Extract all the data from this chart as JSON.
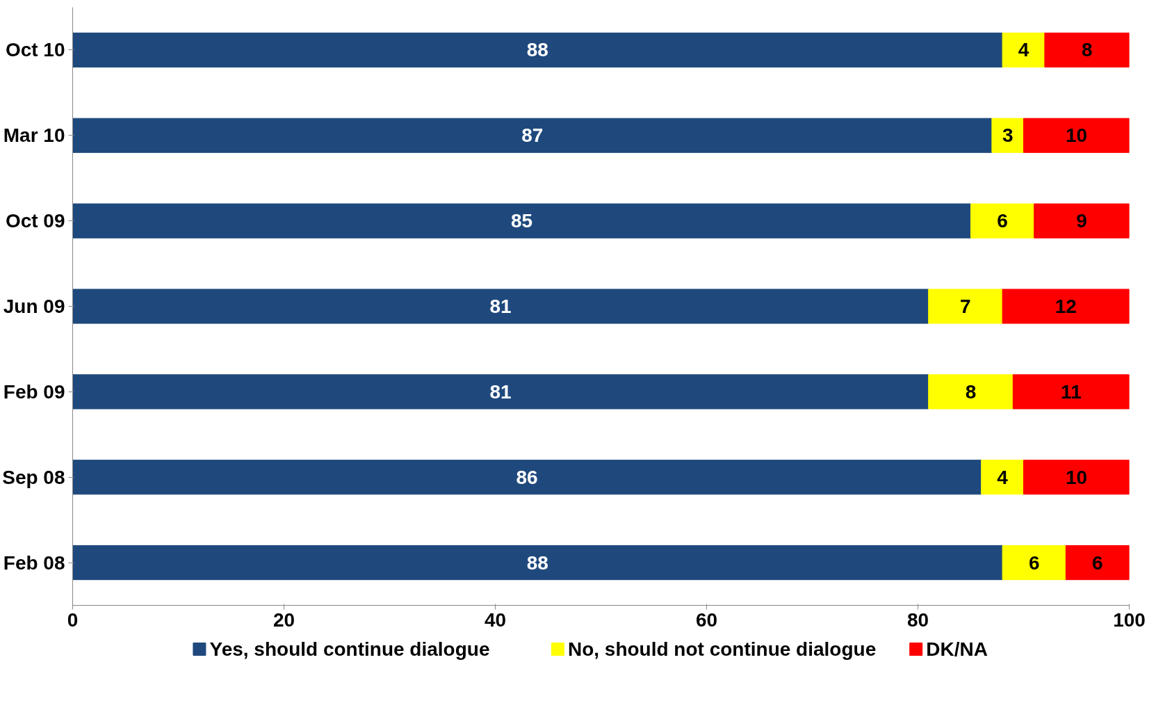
{
  "chart_data": {
    "type": "bar",
    "orientation": "horizontal",
    "stacked": true,
    "data_labels": true,
    "grid": false,
    "legend": "bottom",
    "categories": [
      "Oct 10",
      "Mar 10",
      "Oct 09",
      "Jun 09",
      "Feb 09",
      "Sep 08",
      "Feb 08"
    ],
    "series": [
      {
        "name": "Yes, should continue dialogue",
        "color": "#1f497d",
        "values": [
          88,
          87,
          85,
          81,
          81,
          86,
          88
        ]
      },
      {
        "name": "No, should not continue dialogue",
        "color": "#ffff00",
        "values": [
          4,
          3,
          6,
          7,
          8,
          4,
          6
        ]
      },
      {
        "name": "DK/NA",
        "color": "#ff0000",
        "values": [
          8,
          10,
          9,
          12,
          11,
          10,
          6
        ]
      }
    ],
    "xlim": [
      0,
      100
    ],
    "xticks": [
      0,
      20,
      40,
      60,
      80,
      100
    ]
  }
}
